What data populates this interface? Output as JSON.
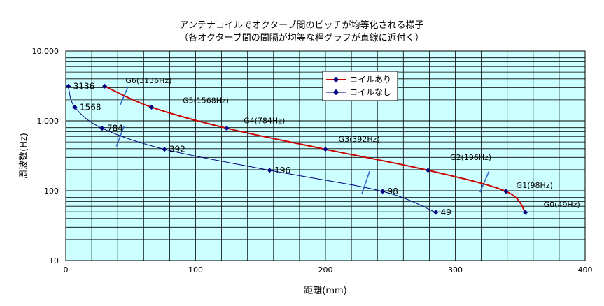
{
  "chart_data": {
    "type": "line",
    "title": "アンテナコイルでオクターブ間のピッチが均等化される様子",
    "subtitle": "（各オクターブ間の間隔が均等な程グラフが直線に近付く）",
    "xlabel": "距離(mm)",
    "ylabel": "周波数(Hz)",
    "xlim": [
      0,
      400
    ],
    "ylim": [
      10,
      10000
    ],
    "y_scale": "log",
    "x_ticks": [
      "0",
      "100",
      "200",
      "300",
      "400"
    ],
    "y_ticks": [
      "10",
      "100",
      "1,000",
      "10,000"
    ],
    "grid": true,
    "plot_background": "#ccffff",
    "legend_position": "top-center",
    "series": [
      {
        "name": "コイルあり",
        "color": "#cc0000",
        "marker_color": "#000080",
        "points": [
          {
            "x": 30,
            "y": 3136
          },
          {
            "x": 66,
            "y": 1568
          },
          {
            "x": 124,
            "y": 784
          },
          {
            "x": 200,
            "y": 392
          },
          {
            "x": 279,
            "y": 196
          },
          {
            "x": 339,
            "y": 98
          },
          {
            "x": 354,
            "y": 49
          }
        ]
      },
      {
        "name": "コイルなし",
        "color": "#000080",
        "marker_color": "#000080",
        "points": [
          {
            "x": 2,
            "y": 3136,
            "label": "3136"
          },
          {
            "x": 7,
            "y": 1568,
            "label": "1568"
          },
          {
            "x": 28,
            "y": 784,
            "label": "784"
          },
          {
            "x": 76,
            "y": 392,
            "label": "392"
          },
          {
            "x": 157,
            "y": 196,
            "label": "196"
          },
          {
            "x": 244,
            "y": 98,
            "label": "98"
          },
          {
            "x": 285,
            "y": 49,
            "label": "49"
          }
        ]
      }
    ],
    "annotations": [
      {
        "text": "G6(3136Hz)",
        "x": 46,
        "y": 3450
      },
      {
        "text": "G5(1568Hz)",
        "x": 90,
        "y": 1800
      },
      {
        "text": "G4(784Hz)",
        "x": 137,
        "y": 920
      },
      {
        "text": "G3(392Hz)",
        "x": 210,
        "y": 500
      },
      {
        "text": "G2(196Hz)",
        "x": 296,
        "y": 275
      },
      {
        "text": "G1(98Hz)",
        "x": 347,
        "y": 110
      },
      {
        "text": "G0(49Hz)",
        "x": 368,
        "y": 58
      }
    ],
    "octave_markers": [
      {
        "x1": 42,
        "y1": 1700,
        "x2": 48,
        "y2": 3100
      },
      {
        "x1": 39,
        "y1": 430,
        "x2": 45,
        "y2": 850
      },
      {
        "x1": 228,
        "y1": 90,
        "x2": 234,
        "y2": 190
      },
      {
        "x1": 319,
        "y1": 95,
        "x2": 326,
        "y2": 190
      }
    ]
  }
}
